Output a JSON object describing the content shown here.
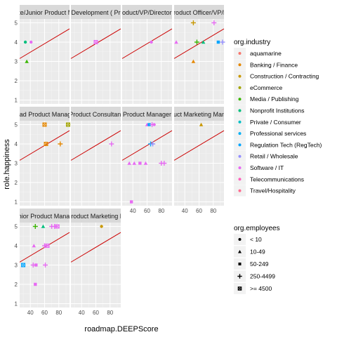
{
  "chart_data": {
    "type": "scatter",
    "xlabel": "roadmap.DEEPScore",
    "ylabel": "role.happiness",
    "xlim": [
      25,
      95
    ],
    "ylim": [
      0.8,
      5.2
    ],
    "x_ticks": [
      40,
      60,
      80
    ],
    "y_ticks": [
      1,
      2,
      3,
      4,
      5
    ],
    "grid": true,
    "reference_line": {
      "intercept": 2.6,
      "slope": 0.022,
      "color": "#cc0000"
    },
    "facets": [
      {
        "title": "Associate/Junior Product Manager",
        "points": [
          {
            "x": 33,
            "y": 4,
            "industry": "Nonprofit Institutions",
            "employees": "< 10"
          },
          {
            "x": 41,
            "y": 4,
            "industry": "Software / IT",
            "employees": "< 10"
          },
          {
            "x": 35,
            "y": 3,
            "industry": "Media / Publishing",
            "employees": "10-49"
          }
        ]
      },
      {
        "title": "Director of Product Development ( Products & Services )",
        "points": [
          {
            "x": 60,
            "y": 4,
            "industry": "Software / IT",
            "employees": ">= 4500"
          }
        ]
      },
      {
        "title": "Head of Product/VP/Director of Product",
        "points": [
          {
            "x": 66,
            "y": 4,
            "industry": "Software / IT",
            "employees": "< 10"
          }
        ]
      },
      {
        "title": "Chief Product Officer/VP/Director",
        "points": [
          {
            "x": 28,
            "y": 4,
            "industry": "Software / IT",
            "employees": "10-49"
          },
          {
            "x": 52,
            "y": 5,
            "industry": "Construction / Contracting",
            "employees": "250-4499"
          },
          {
            "x": 57,
            "y": 4,
            "industry": "Media / Publishing",
            "employees": "250-4499"
          },
          {
            "x": 52,
            "y": 3,
            "industry": "Banking / Finance",
            "employees": "10-49"
          },
          {
            "x": 66,
            "y": 4,
            "industry": "Nonprofit Institutions",
            "employees": "10-49"
          },
          {
            "x": 81,
            "y": 5,
            "industry": "Software / IT",
            "employees": "250-4499"
          },
          {
            "x": 87,
            "y": 4,
            "industry": "Regulation Tech (RegTech)",
            "employees": "50-249"
          },
          {
            "x": 93,
            "y": 4,
            "industry": "Retail / Wholesale",
            "employees": "250-4499"
          }
        ]
      },
      {
        "title": "Lead Product Manager",
        "points": [
          {
            "x": 60,
            "y": 5,
            "industry": "Banking / Finance",
            "employees": ">= 4500"
          },
          {
            "x": 93,
            "y": 5,
            "industry": "eCommerce",
            "employees": ">= 4500"
          },
          {
            "x": 62,
            "y": 4,
            "industry": "Banking / Finance",
            "employees": ">= 4500"
          },
          {
            "x": 82,
            "y": 4,
            "industry": "Banking / Finance",
            "employees": "250-4499"
          }
        ]
      },
      {
        "title": "Product Consultant",
        "points": [
          {
            "x": 82,
            "y": 4,
            "industry": "Software / IT",
            "employees": "250-4499"
          }
        ]
      },
      {
        "title": "Product Manager",
        "points": [
          {
            "x": 60,
            "y": 5,
            "industry": "Software / IT",
            "employees": "10-49"
          },
          {
            "x": 63,
            "y": 5,
            "industry": "Regulation Tech (RegTech)",
            "employees": "50-249"
          },
          {
            "x": 67,
            "y": 5,
            "industry": "Software / IT",
            "employees": "250-4499"
          },
          {
            "x": 70,
            "y": 5,
            "industry": "Software / IT",
            "employees": "< 10"
          },
          {
            "x": 65,
            "y": 4,
            "industry": "Regulation Tech (RegTech)",
            "employees": "250-4499"
          },
          {
            "x": 68,
            "y": 4,
            "industry": "Retail / Wholesale",
            "employees": "250-4499"
          },
          {
            "x": 35,
            "y": 3,
            "industry": "Software / IT",
            "employees": "10-49"
          },
          {
            "x": 42,
            "y": 3,
            "industry": "Software / IT",
            "employees": "10-49"
          },
          {
            "x": 50,
            "y": 3,
            "industry": "Software / IT",
            "employees": "50-249"
          },
          {
            "x": 58,
            "y": 3,
            "industry": "Software / IT",
            "employees": "10-49"
          },
          {
            "x": 80,
            "y": 3,
            "industry": "Software / IT",
            "employees": "250-4499"
          },
          {
            "x": 84,
            "y": 3,
            "industry": "Software / IT",
            "employees": "250-4499"
          },
          {
            "x": 38,
            "y": 1,
            "industry": "Software / IT",
            "employees": "50-249"
          }
        ]
      },
      {
        "title": "Product Marketing Manager",
        "points": [
          {
            "x": 63,
            "y": 5,
            "industry": "Construction / Contracting",
            "employees": "10-49"
          }
        ]
      },
      {
        "title": "Senior Product Manager",
        "points": [
          {
            "x": 47,
            "y": 5,
            "industry": "Media / Publishing",
            "employees": "250-4499"
          },
          {
            "x": 58,
            "y": 5,
            "industry": "Nonprofit Institutions",
            "employees": "10-49"
          },
          {
            "x": 70,
            "y": 5,
            "industry": "Software / IT",
            "employees": "250-4499"
          },
          {
            "x": 74,
            "y": 5,
            "industry": "Software / IT",
            "employees": "250-4499"
          },
          {
            "x": 78,
            "y": 5,
            "industry": "Software / IT",
            "employees": ">= 4500"
          },
          {
            "x": 45,
            "y": 4,
            "industry": "Software / IT",
            "employees": "10-49"
          },
          {
            "x": 60,
            "y": 4,
            "industry": "Software / IT",
            "employees": "250-4499"
          },
          {
            "x": 64,
            "y": 4,
            "industry": "Software / IT",
            "employees": ">= 4500"
          },
          {
            "x": 30,
            "y": 3,
            "industry": "Regulation Tech (RegTech)",
            "employees": ">= 4500"
          },
          {
            "x": 44,
            "y": 3,
            "industry": "Software / IT",
            "employees": "250-4499"
          },
          {
            "x": 48,
            "y": 3,
            "industry": "Software / IT",
            "employees": "50-249"
          },
          {
            "x": 61,
            "y": 3,
            "industry": "Software / IT",
            "employees": "250-4499"
          },
          {
            "x": 47,
            "y": 2,
            "industry": "Software / IT",
            "employees": "50-249"
          }
        ]
      },
      {
        "title": "Senior Product Marketing Manager",
        "points": [
          {
            "x": 68,
            "y": 5,
            "industry": "Construction / Contracting",
            "employees": "< 10"
          }
        ]
      }
    ],
    "legend_industry": {
      "title": "org.industry",
      "position": "right",
      "entries": [
        {
          "label": "aquamarine",
          "color": "#f8766d"
        },
        {
          "label": "Banking / Finance",
          "color": "#e58700"
        },
        {
          "label": "Construction / Contracting",
          "color": "#c99800"
        },
        {
          "label": "eCommerce",
          "color": "#a3a500"
        },
        {
          "label": "Media / Publishing",
          "color": "#39b600"
        },
        {
          "label": "Nonprofit Institutions",
          "color": "#00bf7d"
        },
        {
          "label": "Private / Consumer",
          "color": "#00bfc4"
        },
        {
          "label": "Professional services",
          "color": "#00b0f6"
        },
        {
          "label": "Regulation Tech (RegTech)",
          "color": "#00a5ff"
        },
        {
          "label": "Retail / Wholesale",
          "color": "#9590ff"
        },
        {
          "label": "Software / IT",
          "color": "#e76bf3"
        },
        {
          "label": "Telecommunications",
          "color": "#ff62bc"
        },
        {
          "label": "Travel/Hospitality",
          "color": "#ff6c90"
        }
      ]
    },
    "legend_employees": {
      "title": "org.employees",
      "position": "right",
      "entries": [
        {
          "label": "< 10",
          "shape": "circle"
        },
        {
          "label": "10-49",
          "shape": "triangle"
        },
        {
          "label": "50-249",
          "shape": "square"
        },
        {
          "label": "250-4499",
          "shape": "plus"
        },
        {
          "label": ">= 4500",
          "shape": "boxed"
        }
      ]
    }
  }
}
